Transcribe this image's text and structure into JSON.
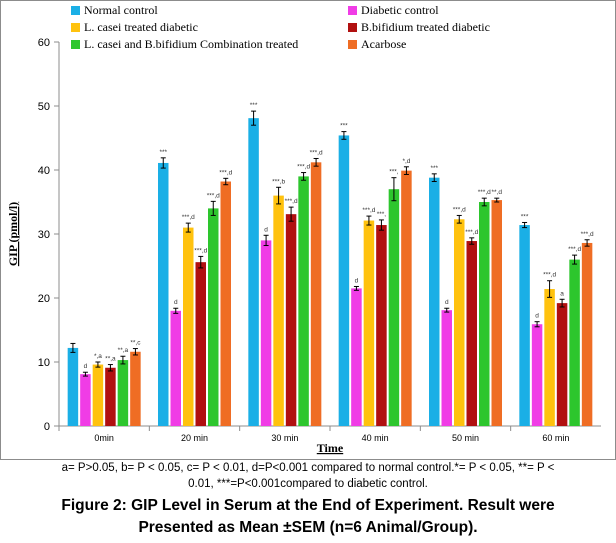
{
  "chart_data": {
    "type": "bar",
    "categories": [
      "0min",
      "20 min",
      "30 min",
      "40 min",
      "50 min",
      "60 min"
    ],
    "series": [
      {
        "name": "Normal control",
        "color": "#1aafe6",
        "values": [
          12.2,
          41.1,
          48.1,
          45.4,
          38.8,
          31.4
        ],
        "errors": [
          0.7,
          0.8,
          1.1,
          0.6,
          0.6,
          0.4
        ],
        "annotations": [
          "",
          "***",
          "***",
          "***",
          "***",
          "***"
        ]
      },
      {
        "name": "Diabetic control",
        "color": "#f03ce6",
        "values": [
          8.1,
          18.0,
          29.0,
          21.5,
          18.1,
          15.9
        ],
        "errors": [
          0.3,
          0.4,
          0.8,
          0.3,
          0.3,
          0.4
        ],
        "annotations": [
          "d",
          "d",
          "d",
          "d",
          "d",
          "d"
        ]
      },
      {
        "name": "L. casei treated diabetic",
        "color": "#ffc20e",
        "values": [
          9.6,
          31.0,
          36.0,
          32.1,
          32.3,
          21.4
        ],
        "errors": [
          0.4,
          0.7,
          1.3,
          0.7,
          0.6,
          1.3
        ],
        "annotations": [
          "*,a",
          "***,d",
          "***,b",
          "***,d",
          "***,d",
          "***,d"
        ]
      },
      {
        "name": "B.bifidium treated diabetic",
        "color": "#b11010",
        "values": [
          9.1,
          25.6,
          33.1,
          31.4,
          28.9,
          19.2
        ],
        "errors": [
          0.5,
          0.9,
          1.1,
          0.8,
          0.5,
          0.6
        ],
        "annotations": [
          "**,a",
          "***,d",
          "***,d",
          "***,",
          "***,d",
          "a"
        ]
      },
      {
        "name": "L. casei and  B.bifidium Combination  treated",
        "color": "#2dc62d",
        "values": [
          10.3,
          34.0,
          39.0,
          37.0,
          35.0,
          26.0
        ],
        "errors": [
          0.6,
          1.1,
          0.6,
          1.8,
          0.6,
          0.7
        ],
        "annotations": [
          "**,a",
          "***,d",
          "***,d",
          "***,",
          "***,d",
          "***,d"
        ]
      },
      {
        "name": "Acarbose",
        "color": "#ef6d24",
        "values": [
          11.6,
          38.2,
          41.2,
          39.9,
          35.3,
          28.6
        ],
        "errors": [
          0.5,
          0.5,
          0.6,
          0.6,
          0.3,
          0.5
        ],
        "annotations": [
          "**,c",
          "***,d",
          "***,d",
          "*,d",
          "**,d",
          "***,d"
        ]
      }
    ],
    "xlabel": "Time",
    "ylabel": "GIP (pmol/l)",
    "ylim": [
      0,
      60
    ],
    "yticks": [
      0,
      10,
      20,
      30,
      40,
      50,
      60
    ],
    "grid": false,
    "legend_position": "top"
  },
  "footnote_line1": "a= P>0.05, b= P < 0.05, c= P < 0.01, d=P<0.001 compared to normal control.*= P < 0.05, **= P <",
  "footnote_line2": "0.01, ***=P<0.001compared to diabetic control.",
  "caption_line1": "Figure 2:  GIP Level in Serum at the End of Experiment. Result were",
  "caption_line2": "Presented as Mean ±SEM (n=6 Animal/Group)."
}
